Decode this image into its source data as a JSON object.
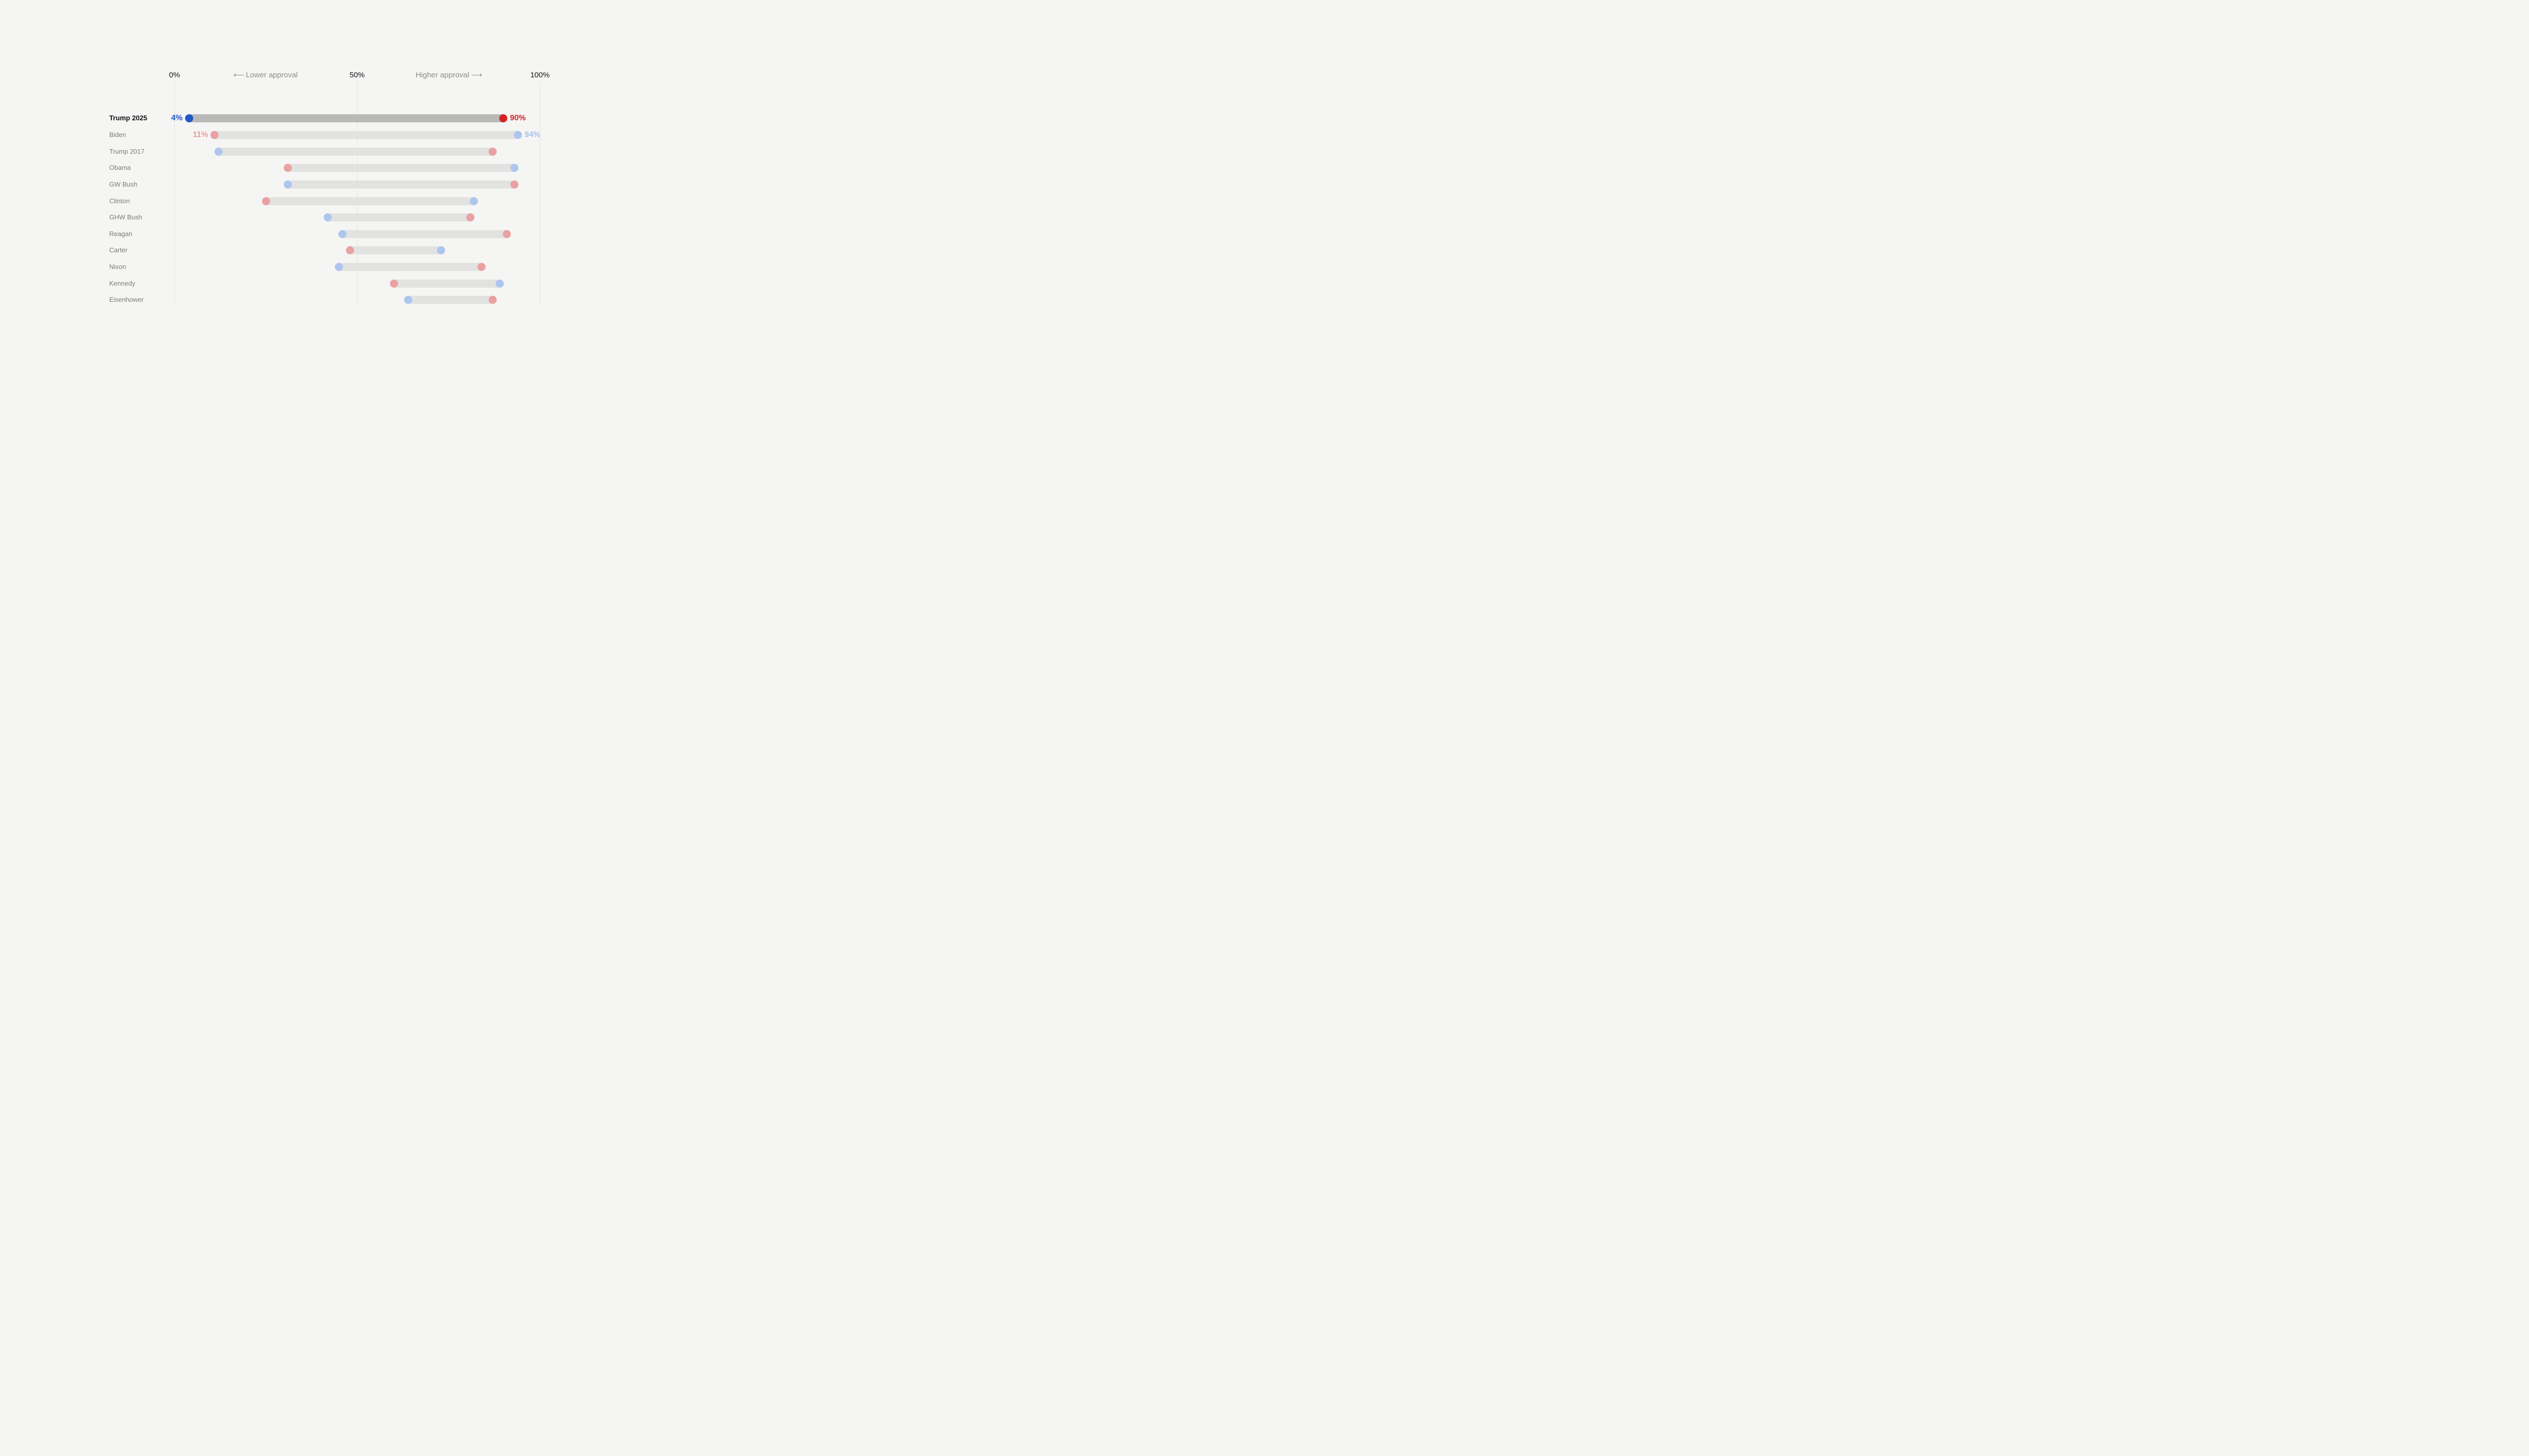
{
  "chart_data": {
    "type": "dumbbell",
    "title": "",
    "axis": {
      "min": 0,
      "max": 100,
      "ticks": [
        {
          "label": "0%",
          "value": 0
        },
        {
          "label": "50%",
          "value": 50
        },
        {
          "label": "100%",
          "value": 100
        }
      ],
      "annotations": {
        "lower": "Lower approval",
        "higher": "Higher approval"
      },
      "arrow_left": "⟵",
      "arrow_right": "⟶"
    },
    "rows": [
      {
        "name": "Trump 2025",
        "emphasis": true,
        "low": {
          "value": 4,
          "color": "blue",
          "label": "4%"
        },
        "high": {
          "value": 90,
          "color": "red",
          "label": "90%"
        }
      },
      {
        "name": "Biden",
        "emphasis": false,
        "low": {
          "value": 11,
          "color": "red",
          "label": "11%"
        },
        "high": {
          "value": 94,
          "color": "blue",
          "label": "94%"
        }
      },
      {
        "name": "Trump 2017",
        "emphasis": false,
        "low": {
          "value": 12,
          "color": "blue"
        },
        "high": {
          "value": 87,
          "color": "red"
        }
      },
      {
        "name": "Obama",
        "emphasis": false,
        "low": {
          "value": 31,
          "color": "red"
        },
        "high": {
          "value": 93,
          "color": "blue"
        }
      },
      {
        "name": "GW Bush",
        "emphasis": false,
        "low": {
          "value": 31,
          "color": "blue"
        },
        "high": {
          "value": 93,
          "color": "red"
        }
      },
      {
        "name": "Clinton",
        "emphasis": false,
        "low": {
          "value": 25,
          "color": "red"
        },
        "high": {
          "value": 82,
          "color": "blue"
        }
      },
      {
        "name": "GHW Bush",
        "emphasis": false,
        "low": {
          "value": 42,
          "color": "blue"
        },
        "high": {
          "value": 81,
          "color": "red"
        }
      },
      {
        "name": "Reagan",
        "emphasis": false,
        "low": {
          "value": 46,
          "color": "blue"
        },
        "high": {
          "value": 91,
          "color": "red"
        }
      },
      {
        "name": "Carter",
        "emphasis": false,
        "low": {
          "value": 48,
          "color": "red"
        },
        "high": {
          "value": 73,
          "color": "blue"
        }
      },
      {
        "name": "Nixon",
        "emphasis": false,
        "low": {
          "value": 45,
          "color": "blue"
        },
        "high": {
          "value": 84,
          "color": "red"
        }
      },
      {
        "name": "Kennedy",
        "emphasis": false,
        "low": {
          "value": 60,
          "color": "red"
        },
        "high": {
          "value": 89,
          "color": "blue"
        }
      },
      {
        "name": "Eisenhower",
        "emphasis": false,
        "low": {
          "value": 64,
          "color": "blue"
        },
        "high": {
          "value": 87,
          "color": "red"
        }
      }
    ],
    "legend_position": "none",
    "grid": "vertical-ticks-only"
  },
  "colors": {
    "background": "#f5f5f4",
    "gridline": "#e4e3e2",
    "bar": "#e2e2e1",
    "bar_emphasis": "#b9b9b8",
    "blue_strong": "#2158c8",
    "red_strong": "#d42421",
    "blue_muted": "#aec6ee",
    "red_muted": "#e9a1a1",
    "label_blue_muted": "#a9c2ec",
    "label_red_muted": "#e89c9c",
    "name_text": "#7c7b7a",
    "name_text_emphasis": "#141414",
    "tick_text": "#151515",
    "annotation_text": "#8e8d8b"
  }
}
